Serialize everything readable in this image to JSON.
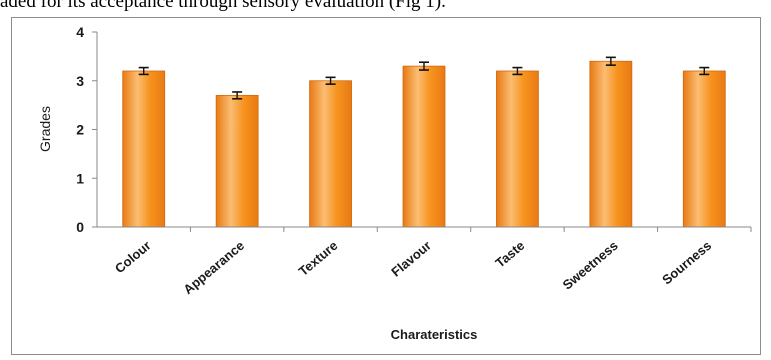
{
  "caption": "aded for its acceptance through sensory evaluation (Fig 1).",
  "chart_data": {
    "type": "bar",
    "categories": [
      "Colour",
      "Appearance",
      "Texture",
      "Flavour",
      "Taste",
      "Sweetness",
      "Sourness"
    ],
    "values": [
      3.2,
      2.7,
      3.0,
      3.3,
      3.2,
      3.4,
      3.2
    ],
    "error": [
      0.07,
      0.07,
      0.07,
      0.08,
      0.07,
      0.08,
      0.07
    ],
    "title": "",
    "xlabel": "Charateristics",
    "ylabel": "Grades",
    "ylim": [
      0,
      4
    ],
    "yticks": [
      0,
      1,
      2,
      3,
      4
    ],
    "grid": false,
    "legend": "none",
    "colors": {
      "bar_light": "#fbbd73",
      "bar_mid": "#f7931e",
      "bar_dark": "#e87a14",
      "bar_edge": "#d2690e"
    }
  }
}
